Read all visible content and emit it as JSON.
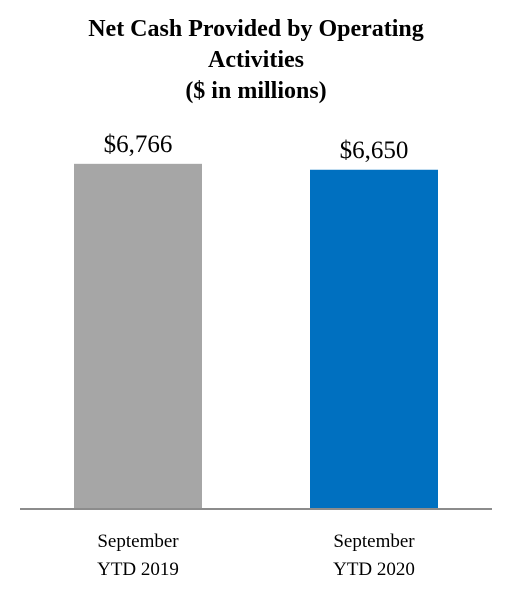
{
  "chart_data": {
    "type": "bar",
    "title_lines": [
      "Net Cash Provided by Operating",
      "Activities",
      "($ in millions)"
    ],
    "categories": [
      [
        "September",
        "YTD 2019"
      ],
      [
        "September",
        "YTD 2020"
      ]
    ],
    "values": [
      6766,
      6650
    ],
    "value_labels": [
      "$6,766",
      "$6,650"
    ],
    "colors": [
      "#a6a6a6",
      "#0070c0"
    ],
    "axis_color": "#8c8c8c",
    "ylim": [
      0,
      6900
    ],
    "grid": false,
    "legend": "none"
  }
}
